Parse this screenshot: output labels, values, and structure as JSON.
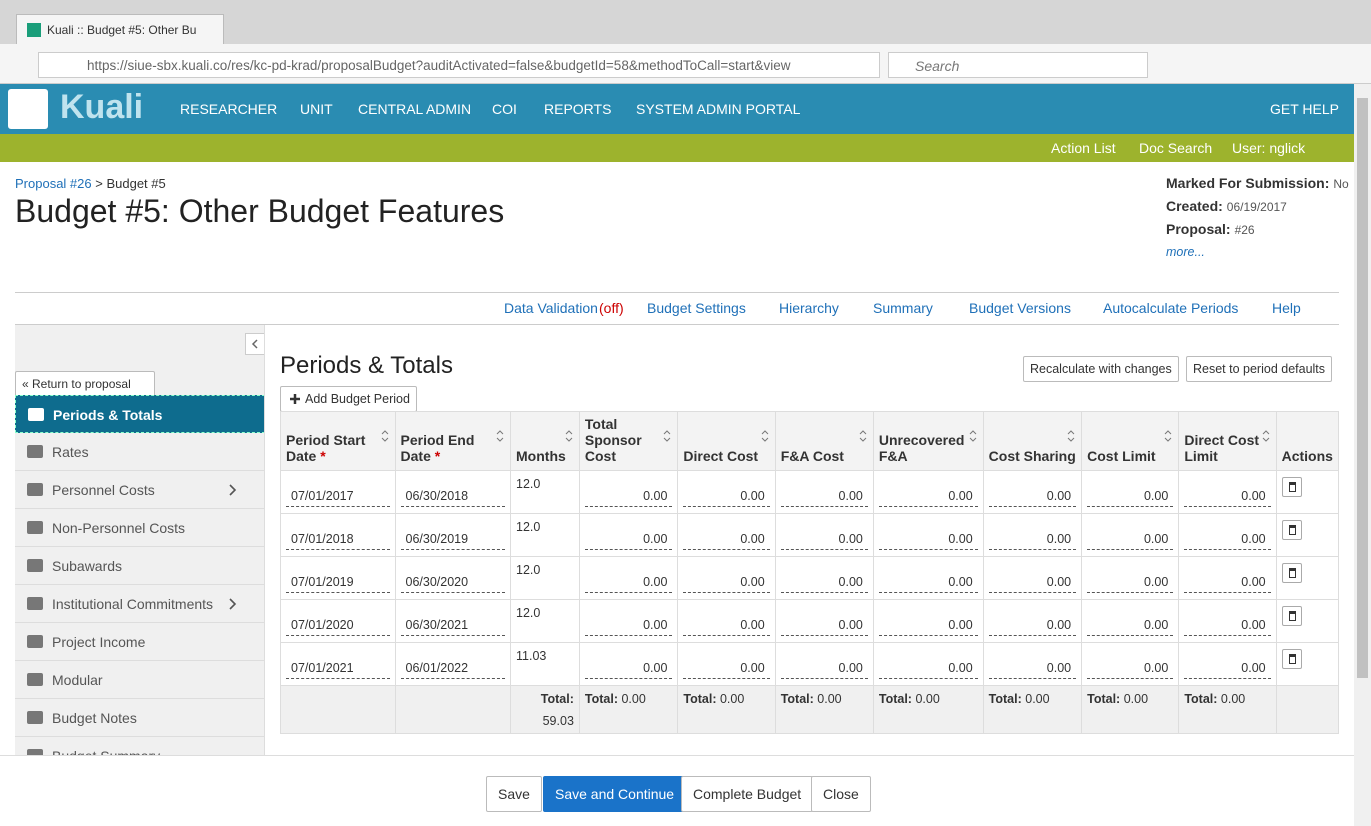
{
  "browser": {
    "tab_title": "Kuali :: Budget #5: Other Bu",
    "url": "https://siue-sbx.kuali.co/res/kc-pd-krad/proposalBudget?auditActivated=false&budgetId=58&methodToCall=start&view",
    "search": "Search"
  },
  "nav": {
    "logo": "Kuali",
    "items": [
      "RESEARCHER",
      "UNIT",
      "CENTRAL ADMIN",
      "COI",
      "REPORTS",
      "SYSTEM ADMIN PORTAL"
    ],
    "help": "GET HELP"
  },
  "subnav": [
    "Action List",
    "Doc Search",
    "User: nglick"
  ],
  "breadcrumb": {
    "link": "Proposal #26",
    "separator": ">",
    "current": "Budget #5"
  },
  "title": "Budget #5: Other Budget Features",
  "meta": {
    "items": [
      {
        "label": "Marked For Submission:",
        "value": "No"
      },
      {
        "label": "Created:",
        "value": "06/19/2017"
      },
      {
        "label": "Proposal:",
        "value": "#26"
      }
    ],
    "more": "more..."
  },
  "toolbar": {
    "validation": "Data Validation",
    "validation_state": "(off)",
    "items": [
      "Budget Settings",
      "Hierarchy",
      "Summary",
      "Budget Versions",
      "Autocalculate Periods",
      "Help"
    ]
  },
  "sidebar": {
    "return": "« Return to proposal",
    "items": [
      "Periods & Totals",
      "Rates",
      "Personnel Costs",
      "Non-Personnel Costs",
      "Subawards",
      "Institutional Commitments",
      "Project Income",
      "Modular",
      "Budget Notes",
      "Budget Summary"
    ]
  },
  "section": {
    "title": "Periods & Totals",
    "buttons": [
      "Recalculate with changes",
      "Reset to period defaults"
    ],
    "add": "Add Budget Period"
  },
  "table": {
    "required_marker": "*",
    "columns": [
      "Period Start Date",
      "Period End Date",
      "Months",
      "Total Sponsor Cost",
      "Direct Cost",
      "F&A Cost",
      "Unrecovered F&A",
      "Cost Sharing",
      "Cost Limit",
      "Direct Cost Limit",
      "Actions"
    ],
    "rows": [
      [
        "07/01/2017",
        "06/30/2018",
        "12.0",
        "0.00",
        "0.00",
        "0.00",
        "0.00",
        "0.00",
        "0.00",
        "0.00"
      ],
      [
        "07/01/2018",
        "06/30/2019",
        "12.0",
        "0.00",
        "0.00",
        "0.00",
        "0.00",
        "0.00",
        "0.00",
        "0.00"
      ],
      [
        "07/01/2019",
        "06/30/2020",
        "12.0",
        "0.00",
        "0.00",
        "0.00",
        "0.00",
        "0.00",
        "0.00",
        "0.00"
      ],
      [
        "07/01/2020",
        "06/30/2021",
        "12.0",
        "0.00",
        "0.00",
        "0.00",
        "0.00",
        "0.00",
        "0.00",
        "0.00"
      ],
      [
        "07/01/2021",
        "06/01/2022",
        "11.03",
        "0.00",
        "0.00",
        "0.00",
        "0.00",
        "0.00",
        "0.00",
        "0.00"
      ]
    ],
    "total_label": "Total:",
    "totals": [
      "59.03",
      "0.00",
      "0.00",
      "0.00",
      "0.00",
      "0.00",
      "0.00",
      "0.00"
    ]
  },
  "footer": [
    "Save",
    "Save and Continue",
    "Complete Budget",
    "Close"
  ]
}
